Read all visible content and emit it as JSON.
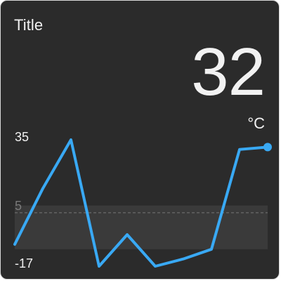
{
  "widget": {
    "title": "Title",
    "value": "32",
    "unit": "°C"
  },
  "chart_data": {
    "type": "line",
    "x": [
      0,
      1,
      2,
      3,
      4,
      5,
      6,
      7,
      8,
      9
    ],
    "series": [
      {
        "values": [
          -8,
          15,
          35,
          -17,
          -4,
          -17,
          -14,
          -10,
          31,
          32
        ],
        "color": "#39a9f4"
      }
    ],
    "ylim": [
      -17,
      35
    ],
    "ytick_labels": [
      "35",
      "-17"
    ],
    "threshold": {
      "label": "5",
      "value": 5
    },
    "normal_band": [
      -10,
      8
    ],
    "band_color": "#3a3a3a",
    "threshold_line_color": "#777777",
    "grid": false,
    "legend": "none"
  },
  "colors": {
    "background": "#2b2b2b",
    "accent": "#39a9f4",
    "text": "#f1f1f1"
  }
}
